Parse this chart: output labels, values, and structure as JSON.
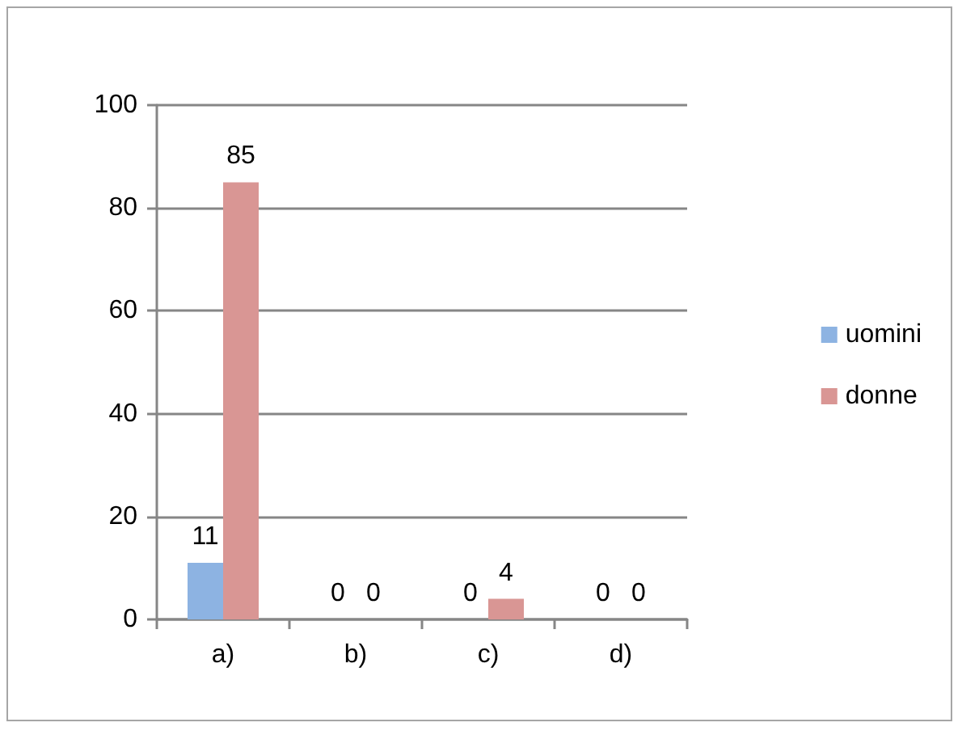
{
  "chart_data": {
    "type": "bar",
    "categories": [
      "a)",
      "b)",
      "c)",
      "d)"
    ],
    "series": [
      {
        "name": "uomini",
        "color": "#8db3e2",
        "values": [
          11,
          0,
          0,
          0
        ]
      },
      {
        "name": "donne",
        "color": "#d99694",
        "values": [
          85,
          0,
          4,
          0
        ]
      }
    ],
    "ylim": [
      0,
      100
    ],
    "yticks": [
      0,
      20,
      40,
      60,
      80,
      100
    ],
    "grid": "y",
    "legend": "right",
    "data_labels": true
  }
}
